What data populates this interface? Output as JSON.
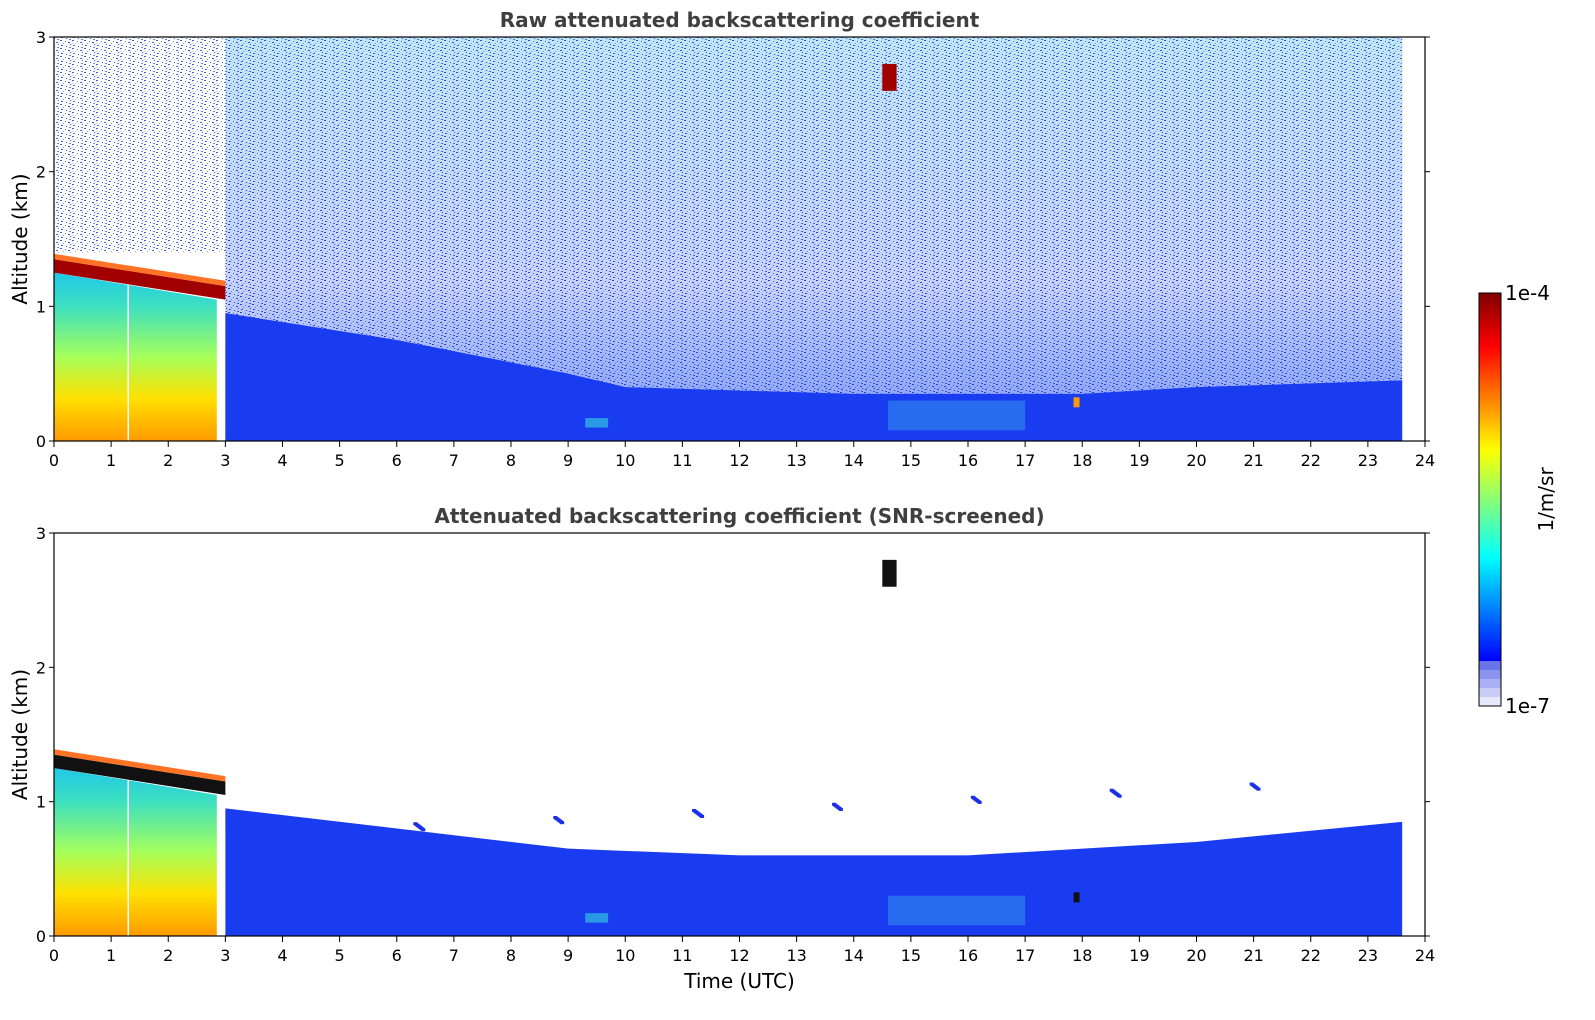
{
  "chart_data": [
    {
      "type": "heatmap",
      "title": "Raw attenuated backscattering coefficient",
      "xlabel": "",
      "ylabel": "Altitude (km)",
      "xlim": [
        0,
        24
      ],
      "ylim": [
        0,
        3
      ],
      "x_ticks": [
        "0",
        "1",
        "2",
        "3",
        "4",
        "5",
        "6",
        "7",
        "8",
        "9",
        "10",
        "11",
        "12",
        "13",
        "14",
        "15",
        "16",
        "17",
        "18",
        "19",
        "20",
        "21",
        "22",
        "23",
        "24"
      ],
      "y_ticks": [
        "0",
        "1",
        "2",
        "3"
      ],
      "data_end_time": 23.6,
      "screened": false,
      "features": {
        "cloud_layer": {
          "start_time": 0,
          "end_time": 3.0,
          "altitude_start": 1.3,
          "altitude_end": 1.1
        },
        "boundary_layer_top": [
          [
            3,
            0.95
          ],
          [
            6,
            0.75
          ],
          [
            9,
            0.5
          ],
          [
            10,
            0.4
          ],
          [
            14,
            0.35
          ],
          [
            18,
            0.35
          ],
          [
            20,
            0.4
          ],
          [
            23.6,
            0.45
          ]
        ],
        "high_cloud": {
          "time": [
            14.5,
            14.75
          ],
          "altitude": [
            2.6,
            2.8
          ]
        },
        "small_feature": {
          "time": 17.9,
          "altitude": 0.28
        }
      }
    },
    {
      "type": "heatmap",
      "title": "Attenuated backscattering coefficient (SNR-screened)",
      "xlabel": "Time (UTC)",
      "ylabel": "Altitude (km)",
      "xlim": [
        0,
        24
      ],
      "ylim": [
        0,
        3
      ],
      "x_ticks": [
        "0",
        "1",
        "2",
        "3",
        "4",
        "5",
        "6",
        "7",
        "8",
        "9",
        "10",
        "11",
        "12",
        "13",
        "14",
        "15",
        "16",
        "17",
        "18",
        "19",
        "20",
        "21",
        "22",
        "23",
        "24"
      ],
      "y_ticks": [
        "0",
        "1",
        "2",
        "3"
      ],
      "data_end_time": 23.6,
      "screened": true,
      "features": {
        "cloud_layer": {
          "start_time": 0,
          "end_time": 3.0,
          "altitude_start": 1.3,
          "altitude_end": 1.1
        },
        "boundary_layer_top": [
          [
            3,
            0.95
          ],
          [
            6,
            0.8
          ],
          [
            9,
            0.65
          ],
          [
            12,
            0.6
          ],
          [
            16,
            0.6
          ],
          [
            20,
            0.7
          ],
          [
            23.6,
            0.85
          ]
        ],
        "high_cloud": {
          "time": [
            14.5,
            14.75
          ],
          "altitude": [
            2.6,
            2.8
          ]
        },
        "small_feature": {
          "time": 17.9,
          "altitude": 0.28
        }
      }
    }
  ],
  "colorbar": {
    "label": "1/m/sr",
    "max_label": "1e-4",
    "min_label": "1e-7",
    "scale": "log",
    "colormap": "jet"
  },
  "colors": {
    "title": "#3f3f3f",
    "background_blue": "#1a3cf0",
    "cloud_red": "#a00000"
  }
}
